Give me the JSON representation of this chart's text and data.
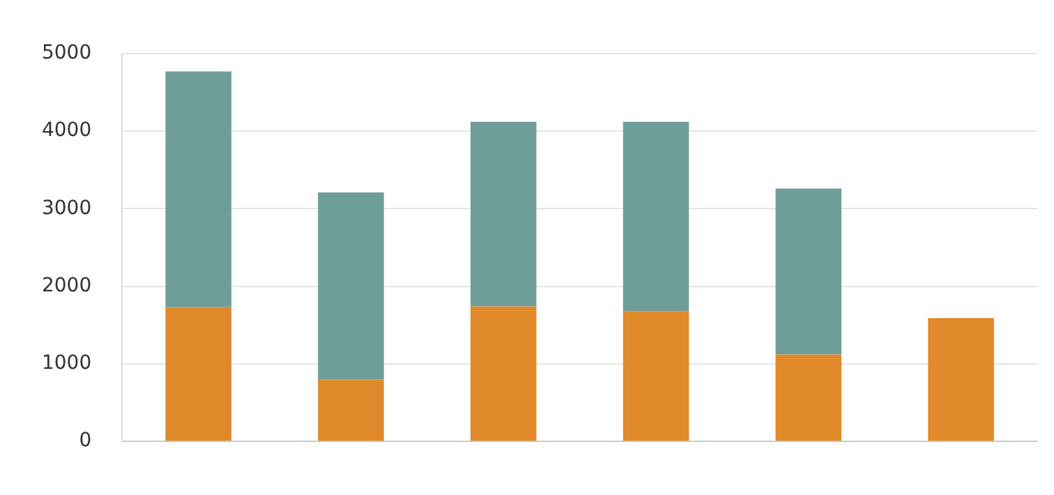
{
  "chart_data": {
    "type": "bar",
    "stacked": true,
    "categories": [
      null,
      null,
      null,
      null,
      null,
      null
    ],
    "series": [
      {
        "color": "#e0892a",
        "values": [
          1730,
          800,
          1740,
          1680,
          1120,
          1590
        ]
      },
      {
        "color": "#6f9e99",
        "values": [
          3040,
          2410,
          2380,
          2440,
          2140,
          null
        ]
      }
    ],
    "ylim": [
      0,
      5000
    ],
    "yticks": [
      0,
      1000,
      2000,
      3000,
      4000,
      5000
    ],
    "grid": "y",
    "legend": false
  }
}
